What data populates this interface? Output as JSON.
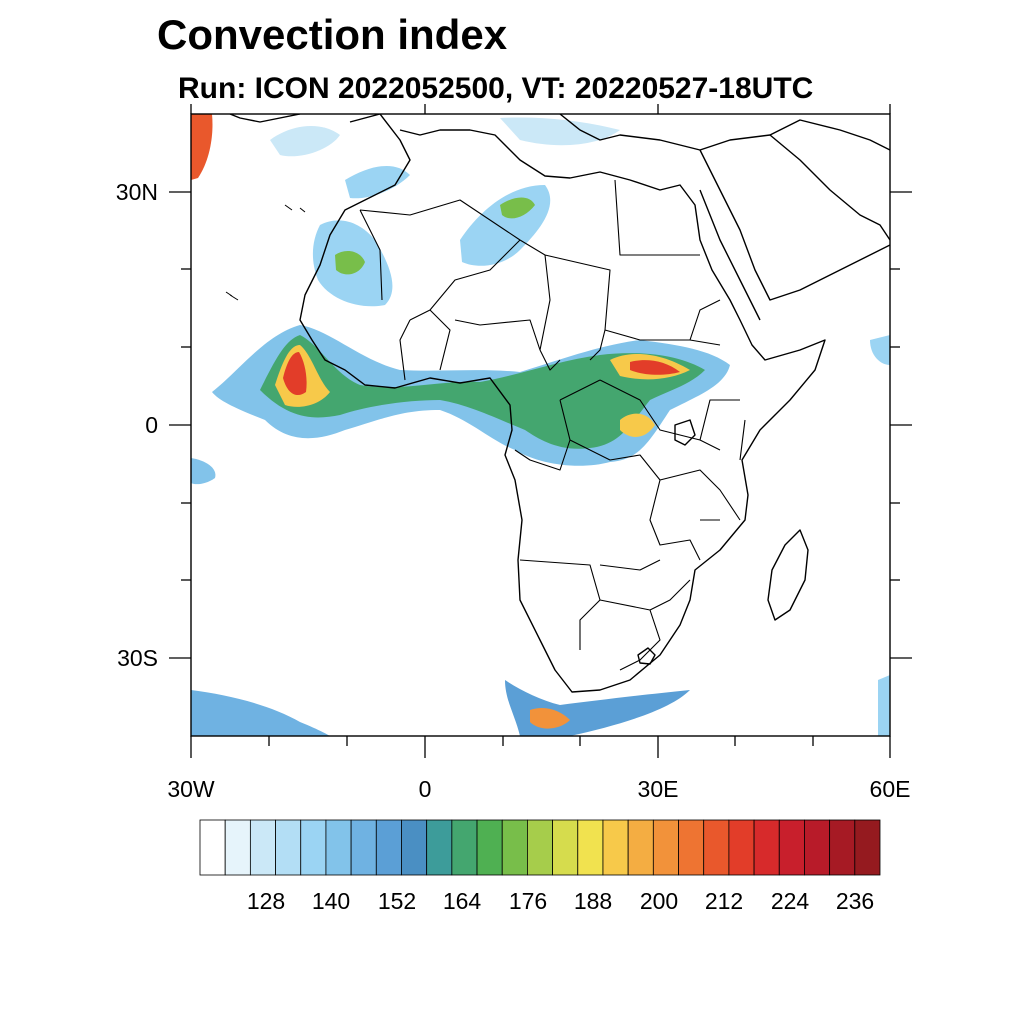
{
  "title": "Convection index",
  "subtitle": "Run: ICON 2022052500,  VT: 20220527-18UTC",
  "map": {
    "lat_labels": [
      "30N",
      "0",
      "30S"
    ],
    "lon_labels": [
      "30W",
      "0",
      "30E",
      "60E"
    ]
  },
  "colorbar": {
    "labels": [
      "128",
      "140",
      "152",
      "164",
      "176",
      "188",
      "200",
      "212",
      "224",
      "236"
    ],
    "colors": [
      "#ffffff",
      "#e6f4fb",
      "#cbe8f7",
      "#b3def5",
      "#9bd4f3",
      "#82c3ea",
      "#6fb2e2",
      "#5b9fd6",
      "#4a8fc3",
      "#3d9c9a",
      "#44a66f",
      "#4fb052",
      "#78be4a",
      "#a6cd4b",
      "#d6dc4d",
      "#f1e24f",
      "#f7c94a",
      "#f4ad42",
      "#f2923a",
      "#ee7432",
      "#e9582c",
      "#e23d29",
      "#d72a2b",
      "#c81f2c",
      "#b81b29",
      "#a61a24",
      "#951a1f"
    ]
  }
}
